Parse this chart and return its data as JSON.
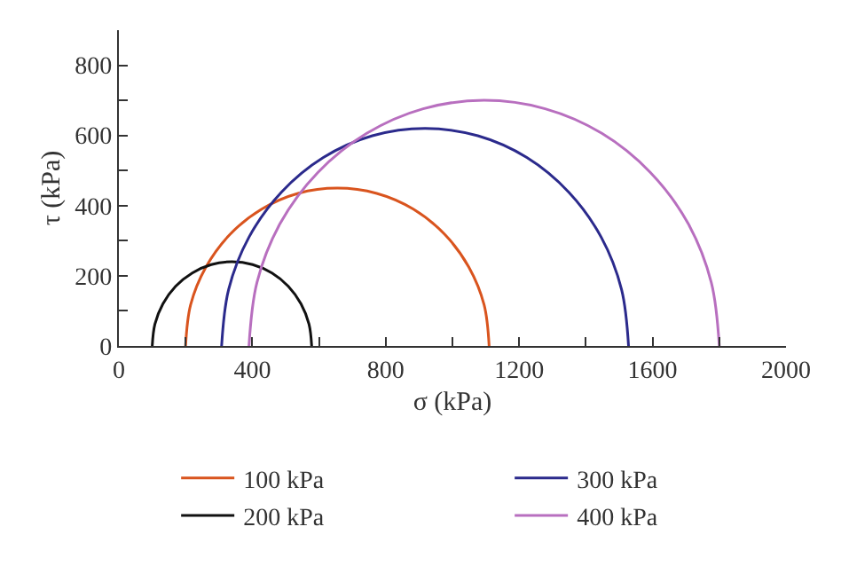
{
  "chart_data": {
    "type": "line",
    "xlabel": "σ (kPa)",
    "ylabel": "τ (kPa)",
    "xlim": [
      0,
      2000
    ],
    "ylim": [
      0,
      900
    ],
    "xticks": [
      0,
      {
        "value": 200,
        "label": null
      },
      400,
      {
        "value": 600,
        "label": null
      },
      800,
      {
        "value": 1000,
        "label": null
      },
      1200,
      {
        "value": 1400,
        "label": null
      },
      1600,
      {
        "value": 1800,
        "label": null
      },
      2000
    ],
    "yticks": [
      0,
      {
        "value": 100,
        "label": null
      },
      200,
      {
        "value": 300,
        "label": null
      },
      400,
      {
        "value": 500,
        "label": null
      },
      600,
      {
        "value": 700,
        "label": null
      },
      800
    ],
    "legend": "bottom",
    "marker": "none",
    "line_style": "solid",
    "series": [
      {
        "name": "100 kPa",
        "color": "#d9541e",
        "x": [
          200,
          215,
          261,
          333,
          428,
          537,
          655,
          773,
          883,
          977,
          1049,
          1095,
          1110
        ],
        "values": [
          0,
          117,
          225,
          318,
          390,
          435,
          450,
          435,
          390,
          318,
          225,
          117,
          0
        ]
      },
      {
        "name": "200 kPa",
        "color": "#111111",
        "x": [
          100,
          108,
          132,
          170,
          220,
          277,
          339,
          401,
          459,
          508,
          546,
          570,
          578
        ],
        "values": [
          0,
          62,
          120,
          170,
          208,
          232,
          240,
          232,
          208,
          170,
          120,
          62,
          0
        ]
      },
      {
        "name": "300 kPa",
        "color": "#2b2a8c",
        "x": [
          308,
          329,
          390,
          487,
          613,
          760,
          918,
          1076,
          1223,
          1349,
          1446,
          1507,
          1528
        ],
        "values": [
          0,
          161,
          310,
          438,
          537,
          599,
          620,
          599,
          537,
          438,
          310,
          161,
          0
        ]
      },
      {
        "name": "400 kPa",
        "color": "#b86fbf",
        "x": [
          390,
          414,
          484,
          597,
          743,
          912,
          1095,
          1278,
          1448,
          1593,
          1706,
          1776,
          1800
        ],
        "values": [
          0,
          181,
          350,
          495,
          606,
          676,
          700,
          676,
          606,
          495,
          350,
          181,
          0
        ]
      }
    ]
  }
}
